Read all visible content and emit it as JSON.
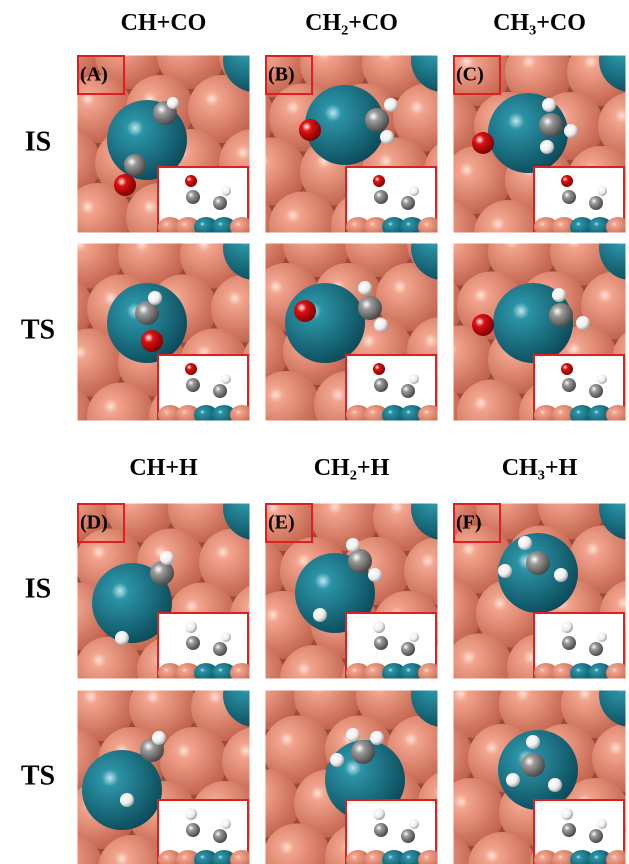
{
  "groups": [
    {
      "columns": [
        "CH+CO",
        "CH₂+CO",
        "CH₃+CO"
      ],
      "rows": [
        "IS",
        "TS"
      ],
      "panels": [
        "(A)",
        "(B)",
        "(C)"
      ]
    },
    {
      "columns": [
        "CH+H",
        "CH₂+H",
        "CH₃+H"
      ],
      "rows": [
        "IS",
        "TS"
      ],
      "panels": [
        "(D)",
        "(E)",
        "(F)"
      ]
    }
  ]
}
